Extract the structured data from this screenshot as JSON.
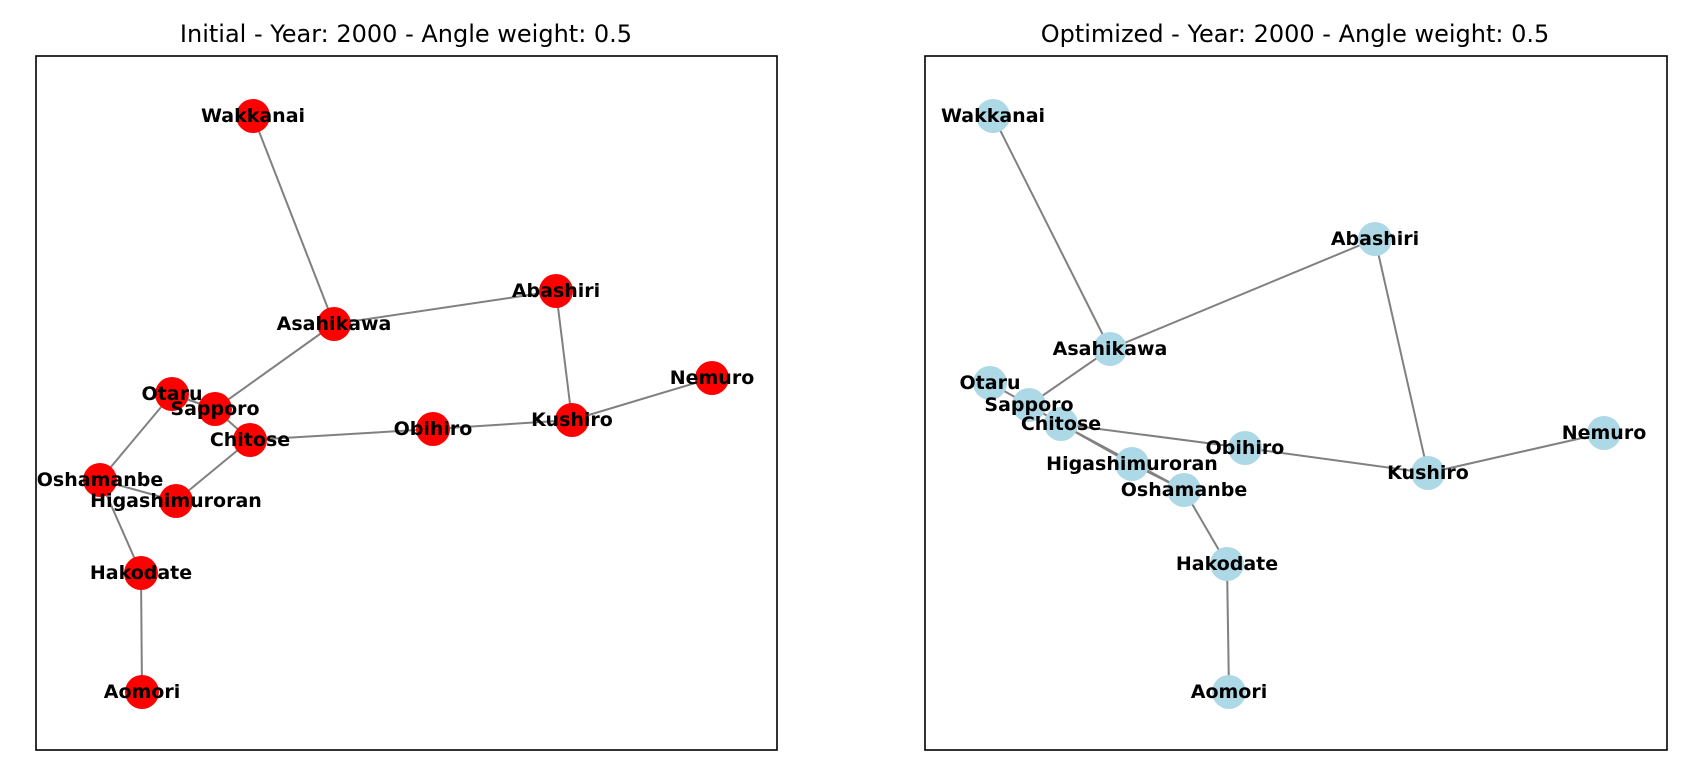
{
  "panels": [
    {
      "title": "Initial - Year: 2000 - Angle weight: 0.5",
      "node_color": "#ff0000",
      "edge_color": "#808080",
      "nodes": [
        {
          "name": "Wakkanai"
        },
        {
          "name": "Asahikawa"
        },
        {
          "name": "Abashiri"
        },
        {
          "name": "Nemuro"
        },
        {
          "name": "Otaru"
        },
        {
          "name": "Sapporo"
        },
        {
          "name": "Chitose"
        },
        {
          "name": "Obihiro"
        },
        {
          "name": "Kushiro"
        },
        {
          "name": "Oshamanbe"
        },
        {
          "name": "Higashimuroran"
        },
        {
          "name": "Hakodate"
        },
        {
          "name": "Aomori"
        }
      ],
      "edges": [
        [
          "Wakkanai",
          "Asahikawa"
        ],
        [
          "Asahikawa",
          "Abashiri"
        ],
        [
          "Asahikawa",
          "Sapporo"
        ],
        [
          "Abashiri",
          "Kushiro"
        ],
        [
          "Kushiro",
          "Nemuro"
        ],
        [
          "Obihiro",
          "Kushiro"
        ],
        [
          "Chitose",
          "Obihiro"
        ],
        [
          "Otaru",
          "Sapporo"
        ],
        [
          "Sapporo",
          "Chitose"
        ],
        [
          "Otaru",
          "Oshamanbe"
        ],
        [
          "Chitose",
          "Higashimuroran"
        ],
        [
          "Oshamanbe",
          "Higashimuroran"
        ],
        [
          "Oshamanbe",
          "Hakodate"
        ],
        [
          "Hakodate",
          "Aomori"
        ]
      ]
    },
    {
      "title": "Optimized - Year: 2000 - Angle weight: 0.5",
      "node_color": "#add8e6",
      "edge_color": "#808080",
      "nodes": [
        {
          "name": "Wakkanai"
        },
        {
          "name": "Abashiri"
        },
        {
          "name": "Asahikawa"
        },
        {
          "name": "Otaru"
        },
        {
          "name": "Sapporo"
        },
        {
          "name": "Chitose"
        },
        {
          "name": "Obihiro"
        },
        {
          "name": "Nemuro"
        },
        {
          "name": "Higashimuroran"
        },
        {
          "name": "Kushiro"
        },
        {
          "name": "Oshamanbe"
        },
        {
          "name": "Hakodate"
        },
        {
          "name": "Aomori"
        }
      ],
      "edges": [
        [
          "Wakkanai",
          "Asahikawa"
        ],
        [
          "Asahikawa",
          "Abashiri"
        ],
        [
          "Asahikawa",
          "Sapporo"
        ],
        [
          "Abashiri",
          "Kushiro"
        ],
        [
          "Kushiro",
          "Nemuro"
        ],
        [
          "Obihiro",
          "Kushiro"
        ],
        [
          "Chitose",
          "Obihiro"
        ],
        [
          "Otaru",
          "Sapporo"
        ],
        [
          "Sapporo",
          "Chitose"
        ],
        [
          "Chitose",
          "Higashimuroran"
        ],
        [
          "Chitose",
          "Oshamanbe"
        ],
        [
          "Higashimuroran",
          "Oshamanbe"
        ],
        [
          "Oshamanbe",
          "Hakodate"
        ],
        [
          "Hakodate",
          "Aomori"
        ]
      ]
    }
  ]
}
